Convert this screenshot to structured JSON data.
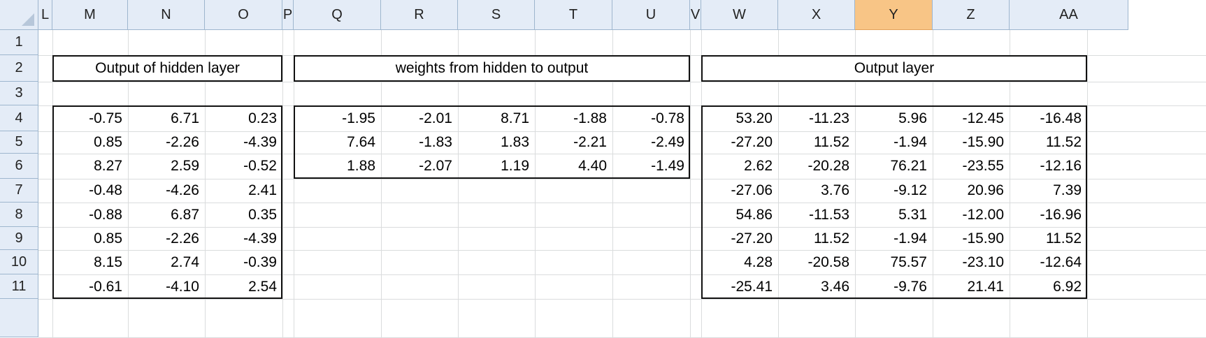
{
  "columns": [
    "L",
    "M",
    "N",
    "O",
    "P",
    "Q",
    "R",
    "S",
    "T",
    "U",
    "V",
    "W",
    "X",
    "Y",
    "Z",
    "AA"
  ],
  "rows": [
    "1",
    "2",
    "3",
    "4",
    "5",
    "6",
    "7",
    "8",
    "9",
    "10",
    "11"
  ],
  "selected_column": "Y",
  "colors": {
    "header_bg": "#e4ecf7",
    "selected_header_bg": "#f8c586",
    "gridline": "#dadcdd"
  },
  "hidden_output": {
    "title": "Output of hidden layer",
    "values": [
      [
        "-0.75",
        "6.71",
        "0.23"
      ],
      [
        "0.85",
        "-2.26",
        "-4.39"
      ],
      [
        "8.27",
        "2.59",
        "-0.52"
      ],
      [
        "-0.48",
        "-4.26",
        "2.41"
      ],
      [
        "-0.88",
        "6.87",
        "0.35"
      ],
      [
        "0.85",
        "-2.26",
        "-4.39"
      ],
      [
        "8.15",
        "2.74",
        "-0.39"
      ],
      [
        "-0.61",
        "-4.10",
        "2.54"
      ]
    ]
  },
  "weights": {
    "title": "weights from hidden to output",
    "values": [
      [
        "-1.95",
        "-2.01",
        "8.71",
        "-1.88",
        "-0.78"
      ],
      [
        "7.64",
        "-1.83",
        "1.83",
        "-2.21",
        "-2.49"
      ],
      [
        "1.88",
        "-2.07",
        "1.19",
        "4.40",
        "-1.49"
      ]
    ]
  },
  "output_layer": {
    "title": "Output layer",
    "values": [
      [
        "53.20",
        "-11.23",
        "5.96",
        "-12.45",
        "-16.48"
      ],
      [
        "-27.20",
        "11.52",
        "-1.94",
        "-15.90",
        "11.52"
      ],
      [
        "2.62",
        "-20.28",
        "76.21",
        "-23.55",
        "-12.16"
      ],
      [
        "-27.06",
        "3.76",
        "-9.12",
        "20.96",
        "7.39"
      ],
      [
        "54.86",
        "-11.53",
        "5.31",
        "-12.00",
        "-16.96"
      ],
      [
        "-27.20",
        "11.52",
        "-1.94",
        "-15.90",
        "11.52"
      ],
      [
        "4.28",
        "-20.58",
        "75.57",
        "-23.10",
        "-12.64"
      ],
      [
        "-25.41",
        "3.46",
        "-9.76",
        "21.41",
        "6.92"
      ]
    ]
  }
}
